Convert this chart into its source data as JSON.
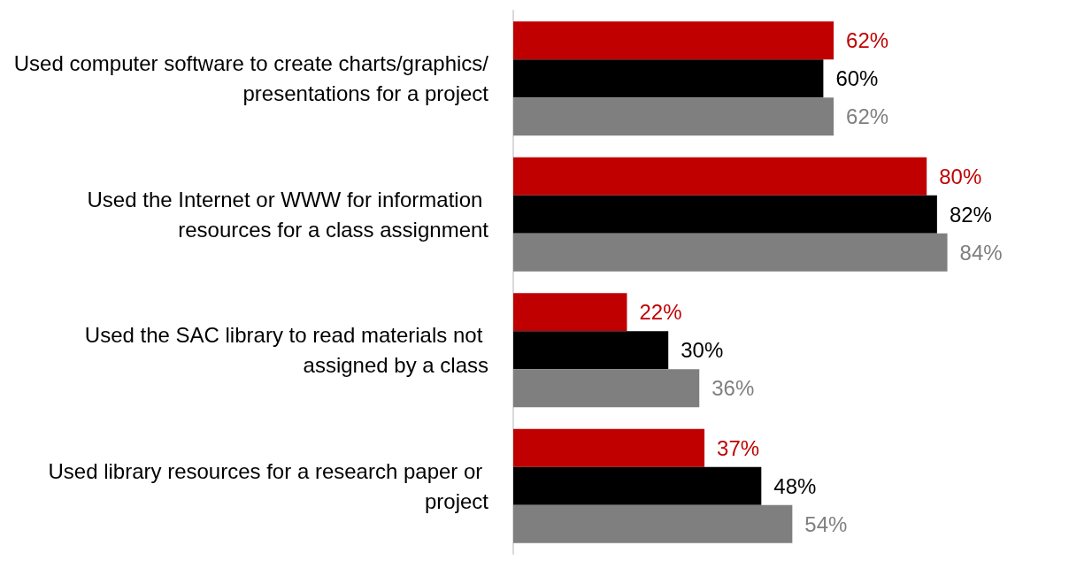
{
  "chart_data": {
    "type": "bar",
    "orientation": "horizontal",
    "categories": [
      "Used computer software to create charts/graphics/presentations for a project",
      "Used the Internet or WWW for information resources for a class assignment",
      "Used the SAC library to read materials not assigned by a class",
      "Used library resources for a research paper or project"
    ],
    "series": [
      {
        "color": "#c00000",
        "values": [
          62,
          80,
          22,
          37
        ],
        "value_labels": [
          "62%",
          "80%",
          "22%",
          "37%"
        ]
      },
      {
        "color": "#000000",
        "values": [
          60,
          82,
          30,
          48
        ],
        "value_labels": [
          "60%",
          "82%",
          "30%",
          "48%"
        ]
      },
      {
        "color": "#7f7f7f",
        "values": [
          62,
          84,
          36,
          54
        ],
        "value_labels": [
          "62%",
          "84%",
          "36%",
          "54%"
        ]
      }
    ],
    "tick_labels": "y"
  }
}
